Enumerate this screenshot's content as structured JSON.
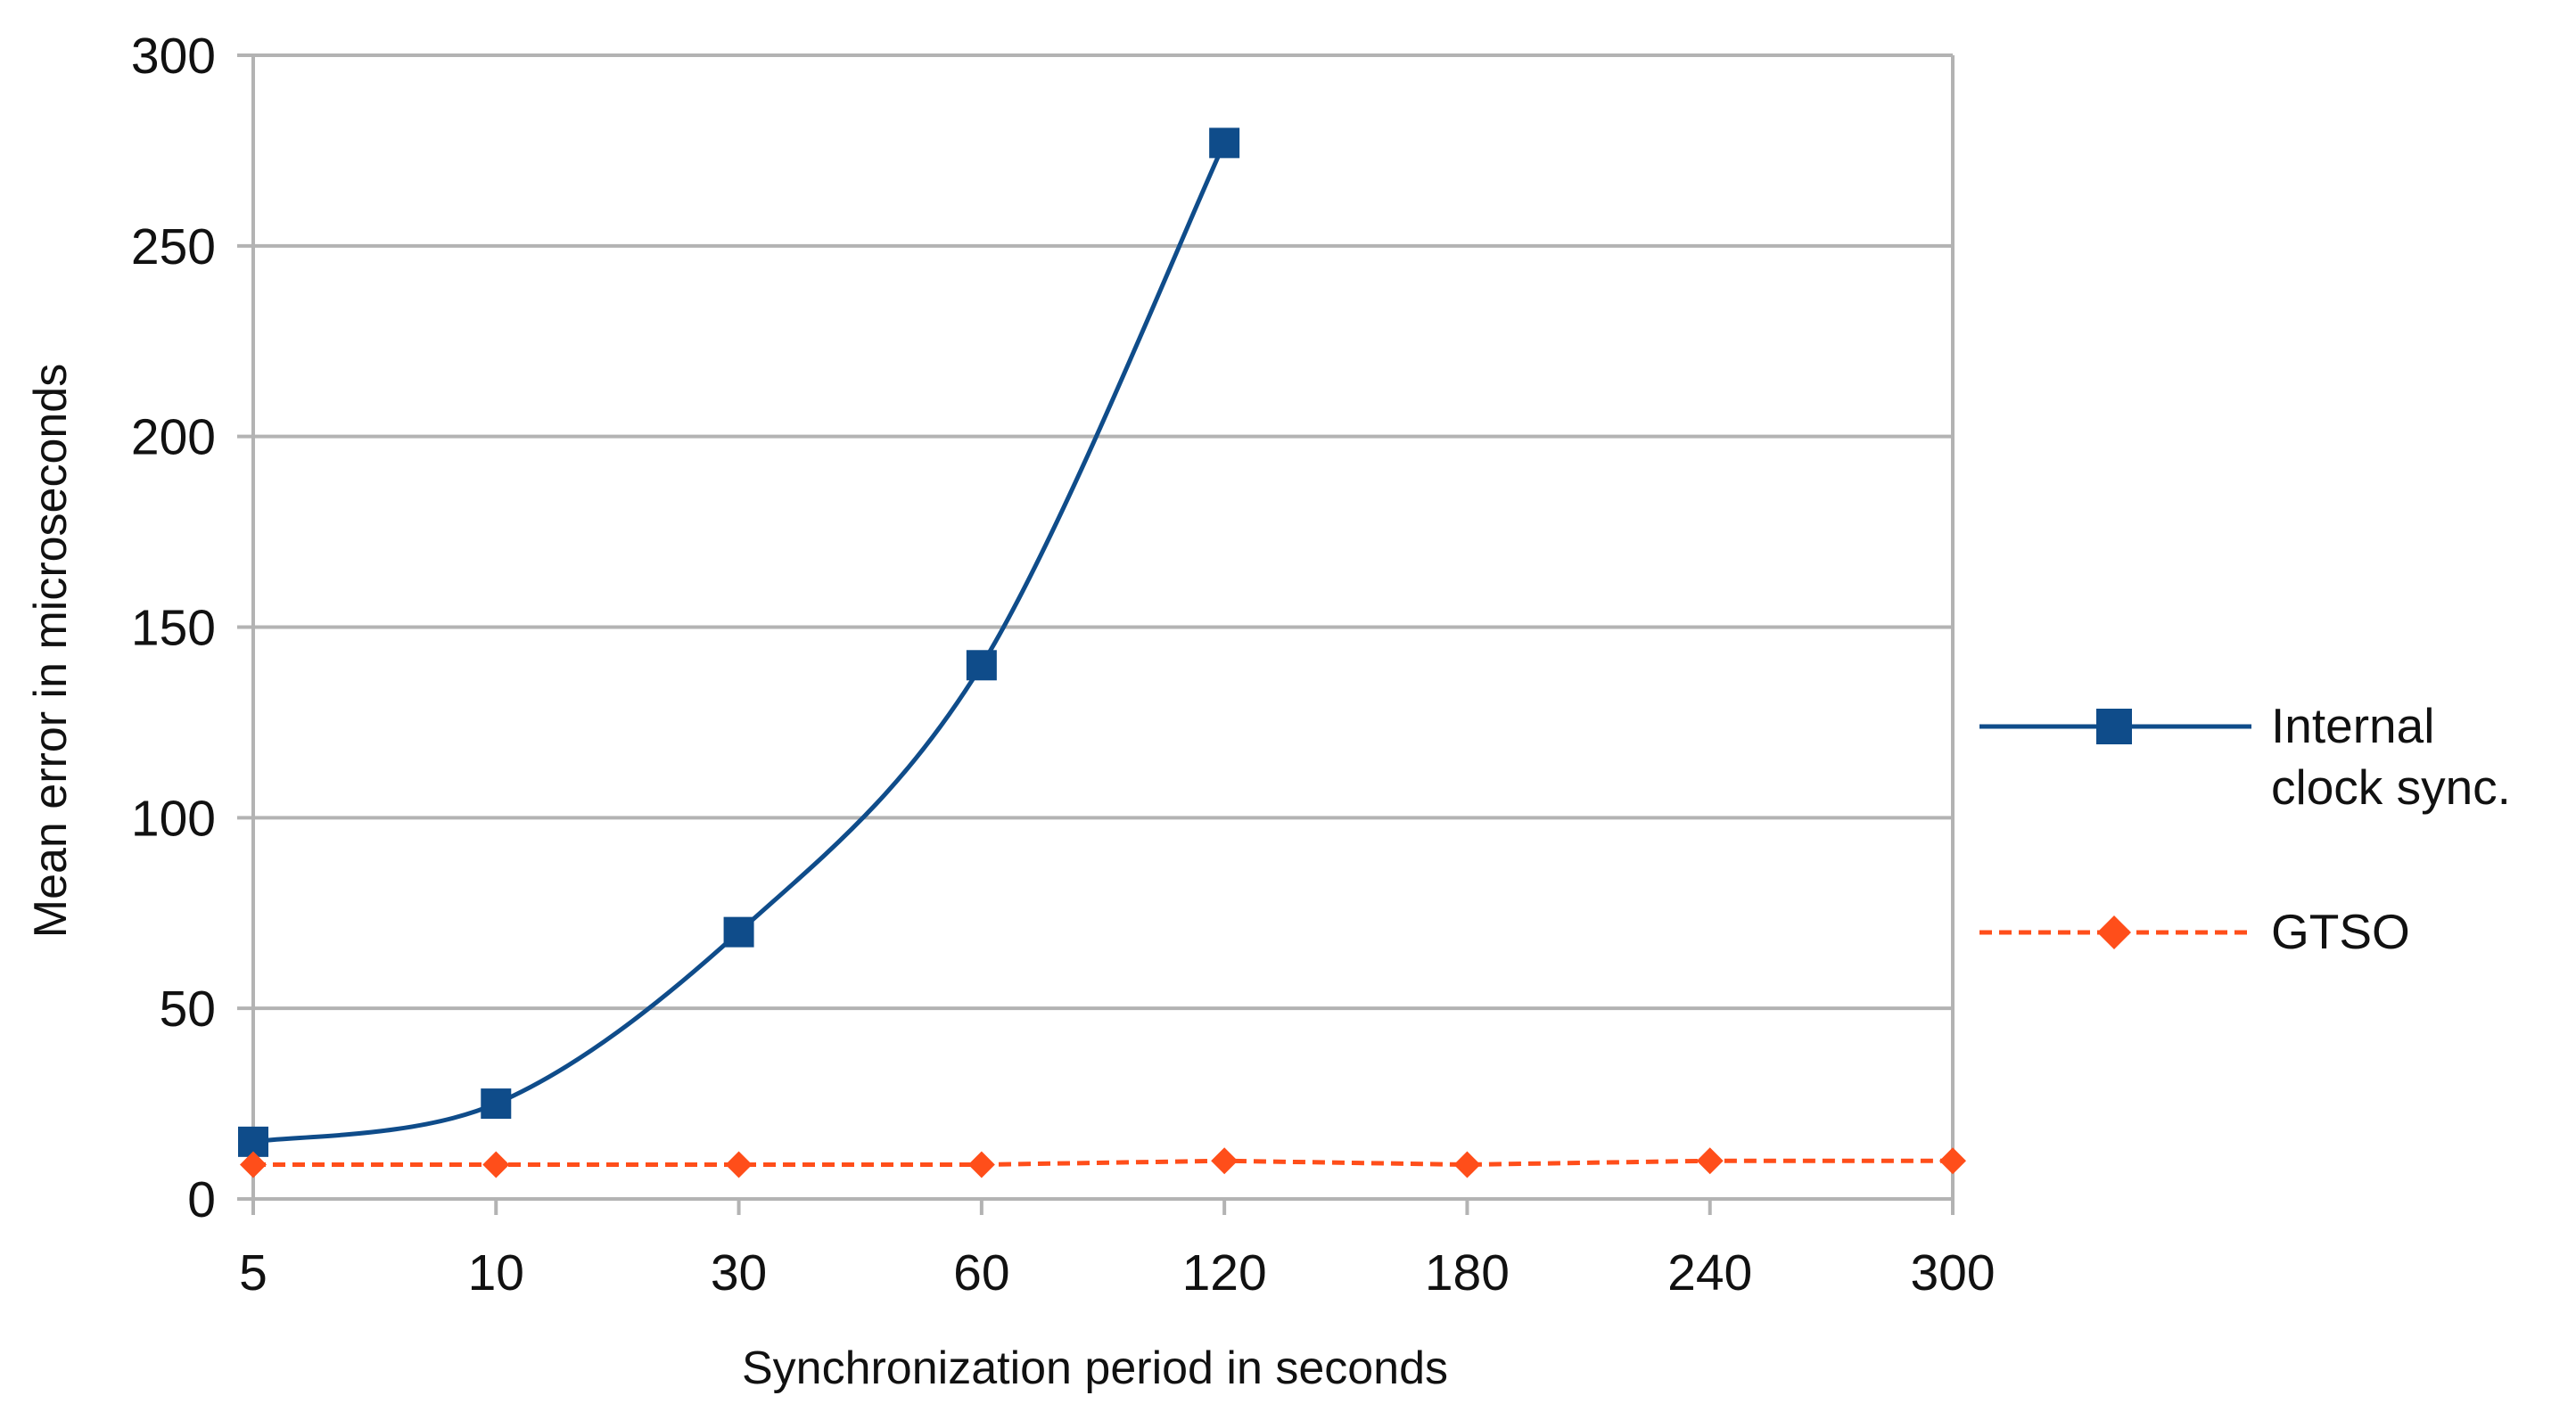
{
  "chart_data": {
    "type": "line",
    "title": "",
    "categories": [
      "5",
      "10",
      "30",
      "60",
      "120",
      "180",
      "240",
      "300"
    ],
    "xlabel": "Synchronization period in seconds",
    "ylabel": "Mean error in microseconds",
    "ylim": [
      0,
      300
    ],
    "yticks": [
      "0",
      "50",
      "100",
      "150",
      "200",
      "250",
      "300"
    ],
    "grid": true,
    "legend_position": "right",
    "series": [
      {
        "name_lines": [
          "Internal",
          "clock sync."
        ],
        "marker": "square",
        "line_style": "solid",
        "smooth": true,
        "color": "#0f4c8a",
        "values": [
          15,
          25,
          70,
          140,
          277,
          null,
          null,
          null
        ]
      },
      {
        "name_lines": [
          "GTSO"
        ],
        "marker": "diamond",
        "line_style": "dashed",
        "smooth": false,
        "color": "#ff4e1a",
        "values": [
          9,
          9,
          9,
          9,
          10,
          9,
          10,
          10
        ]
      }
    ]
  }
}
